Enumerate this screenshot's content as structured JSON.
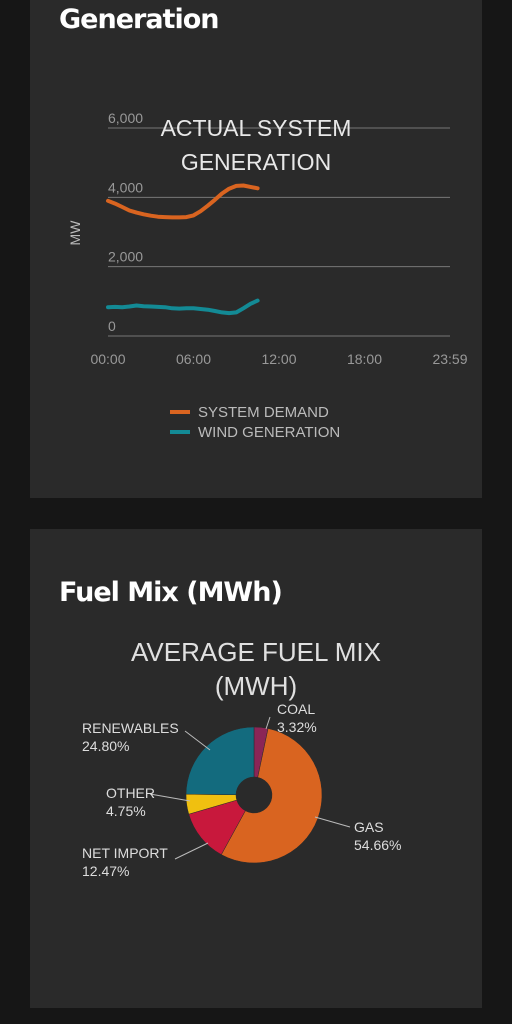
{
  "generation_card": {
    "heading": "Generation"
  },
  "fuel_card": {
    "heading": "Fuel Mix (MWh)"
  },
  "chart_data": [
    {
      "type": "line",
      "title_lines": [
        "ACTUAL SYSTEM",
        "GENERATION"
      ],
      "ylabel": "MW",
      "ylim": [
        0,
        6000
      ],
      "yticks": [
        "0",
        "2,000",
        "4,000",
        "6,000"
      ],
      "ytick_values": [
        0,
        2000,
        4000,
        6000
      ],
      "xlim": [
        0,
        24
      ],
      "xticks": [
        "00:00",
        "06:00",
        "12:00",
        "18:00",
        "23:59"
      ],
      "xtick_values": [
        0,
        6,
        12,
        18,
        24
      ],
      "grid": true,
      "legend": "bottom",
      "series": [
        {
          "name": "SYSTEM DEMAND",
          "color": "#d96420",
          "x": [
            0,
            0.5,
            1,
            1.5,
            2,
            2.5,
            3,
            3.5,
            4,
            4.5,
            5,
            5.5,
            6,
            6.5,
            7,
            7.5,
            8,
            8.5,
            9,
            9.5,
            10,
            10.5
          ],
          "y": [
            3900,
            3820,
            3720,
            3620,
            3560,
            3510,
            3470,
            3440,
            3430,
            3420,
            3420,
            3430,
            3480,
            3600,
            3760,
            3930,
            4110,
            4250,
            4330,
            4340,
            4300,
            4260
          ]
        },
        {
          "name": "WIND GENERATION",
          "color": "#138a95",
          "x": [
            0,
            0.5,
            1,
            1.5,
            2,
            2.5,
            3,
            3.5,
            4,
            4.5,
            5,
            5.5,
            6,
            6.5,
            7,
            7.5,
            8,
            8.5,
            9,
            9.5,
            10,
            10.5
          ],
          "y": [
            830,
            840,
            830,
            850,
            880,
            860,
            850,
            840,
            830,
            800,
            790,
            800,
            800,
            780,
            760,
            720,
            680,
            660,
            680,
            800,
            930,
            1020
          ]
        }
      ]
    },
    {
      "type": "pie",
      "donut": true,
      "title_lines": [
        "AVERAGE FUEL MIX",
        "(MWH)"
      ],
      "slices": [
        {
          "label": "COAL",
          "value": 3.32,
          "pct": "3.32%",
          "color": "#8b2556"
        },
        {
          "label": "GAS",
          "value": 54.66,
          "pct": "54.66%",
          "color": "#d96420"
        },
        {
          "label": "NET IMPORT",
          "value": 12.47,
          "pct": "12.47%",
          "color": "#c8183c"
        },
        {
          "label": "OTHER",
          "value": 4.75,
          "pct": "4.75%",
          "color": "#f0c010"
        },
        {
          "label": "RENEWABLES",
          "value": 24.8,
          "pct": "24.80%",
          "color": "#136b7e"
        }
      ]
    }
  ]
}
